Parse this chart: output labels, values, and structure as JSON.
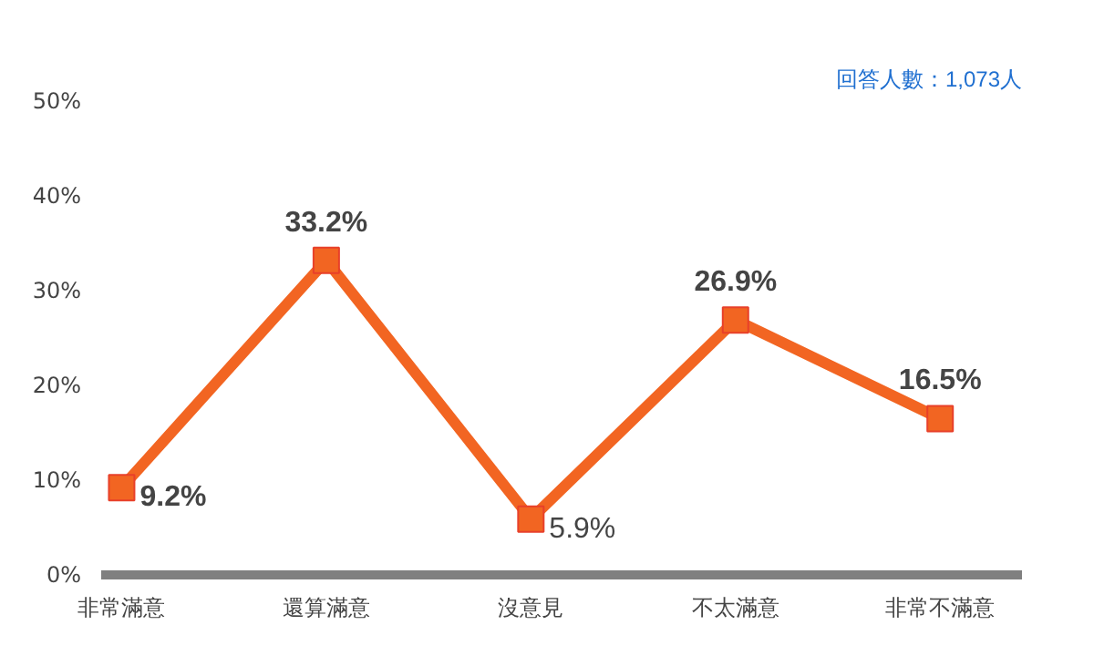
{
  "chart_data": {
    "type": "line",
    "categories": [
      "非常滿意",
      "還算滿意",
      "沒意見",
      "不太滿意",
      "非常不滿意"
    ],
    "series": [
      {
        "color": "#f26522",
        "values": [
          9.2,
          33.2,
          5.9,
          26.9,
          16.5
        ]
      }
    ],
    "value_labels": [
      "9.2%",
      "33.2%",
      "5.9%",
      "26.9%",
      "16.5%"
    ],
    "ylim": [
      0,
      50
    ],
    "yticks": [
      {
        "value": 0,
        "label": "0%"
      },
      {
        "value": 10,
        "label": "10%"
      },
      {
        "value": 20,
        "label": "20%"
      },
      {
        "value": 30,
        "label": "30%"
      },
      {
        "value": 40,
        "label": "40%"
      },
      {
        "value": 50,
        "label": "50%"
      }
    ],
    "annotations": [
      "回答人數：1,073人"
    ],
    "marker": "square",
    "line_style": "solid",
    "grid": false
  }
}
